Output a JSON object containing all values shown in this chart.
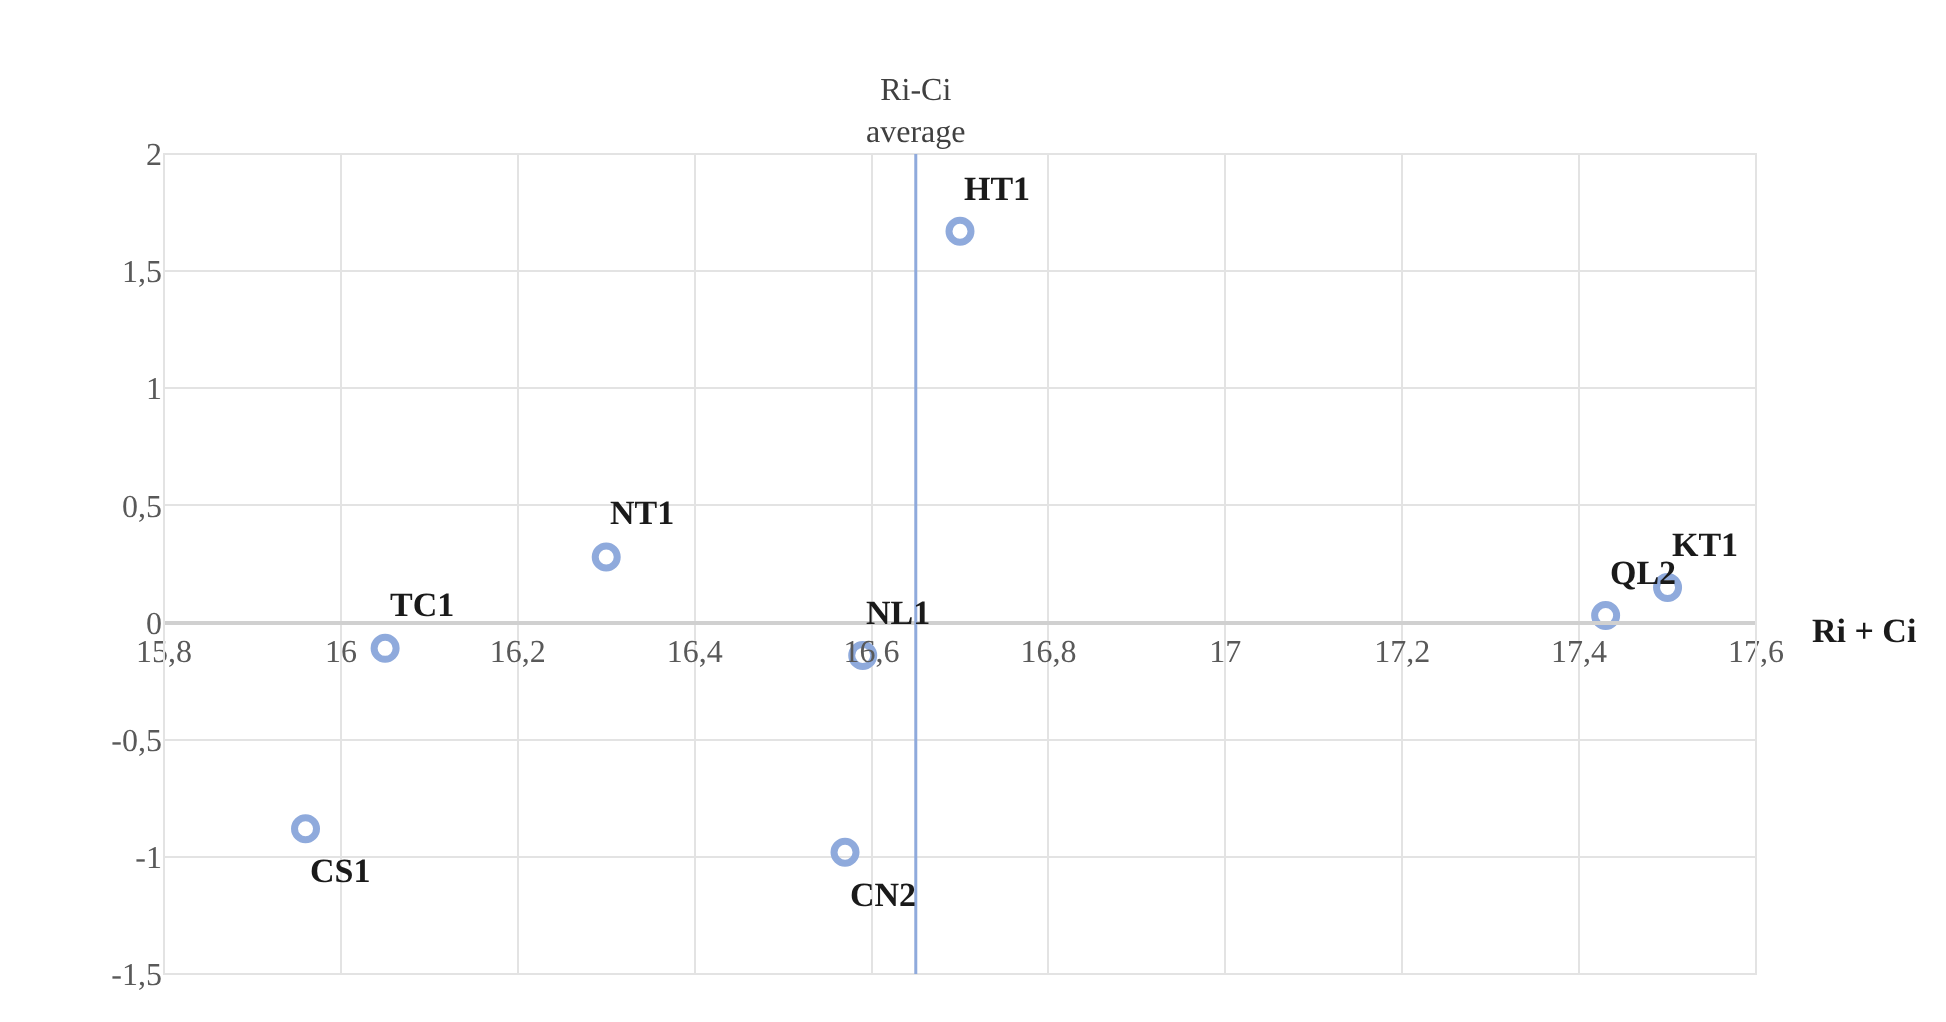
{
  "chart_data": {
    "type": "scatter",
    "xlabel": "Ri + Ci",
    "x": [
      16.05,
      16.3,
      16.59,
      16.7,
      17.43,
      17.5,
      15.96,
      16.57
    ],
    "series": [
      {
        "color": "#8faadc",
        "values": [
          -0.11,
          0.28,
          -0.14,
          1.67,
          0.03,
          0.15,
          -0.88,
          -0.98
        ]
      }
    ],
    "annotations": [
      {
        "text": "TC1",
        "x": 16.05,
        "y": -0.11
      },
      {
        "text": "NT1",
        "x": 16.3,
        "y": 0.28
      },
      {
        "text": "NL1",
        "x": 16.59,
        "y": -0.14
      },
      {
        "text": "HT1",
        "x": 16.7,
        "y": 1.67
      },
      {
        "text": "QL2",
        "x": 17.43,
        "y": 0.03
      },
      {
        "text": "KT1",
        "x": 17.5,
        "y": 0.15
      },
      {
        "text": "CS1",
        "x": 15.96,
        "y": -0.88
      },
      {
        "text": "CN2",
        "x": 16.57,
        "y": -0.98
      }
    ],
    "ref_lines": [
      {
        "axis": "x",
        "value": 16.65,
        "label": "Ri-Ci average",
        "color": "#8faadc"
      }
    ],
    "xlim": [
      15.8,
      17.6
    ],
    "xticks": [
      {
        "value": 15.8,
        "label": "15,8"
      },
      16,
      {
        "value": 16.2,
        "label": "16,2"
      },
      {
        "value": 16.4,
        "label": "16,4"
      },
      {
        "value": 16.6,
        "label": "16,6"
      },
      {
        "value": 16.8,
        "label": "16,8"
      },
      17,
      {
        "value": 17.2,
        "label": "17,2"
      },
      {
        "value": 17.4,
        "label": "17,4"
      },
      {
        "value": 17.6,
        "label": "17,6"
      }
    ],
    "ylim": [
      -1.5,
      2
    ],
    "yticks": [
      {
        "value": -1.5,
        "label": "-1,5"
      },
      -1,
      {
        "value": -0.5,
        "label": "-0,5"
      },
      0,
      {
        "value": 0.5,
        "label": "0,5"
      },
      1,
      {
        "value": 1.5,
        "label": "1,5"
      },
      2
    ],
    "grid": true,
    "marker": "circle"
  }
}
